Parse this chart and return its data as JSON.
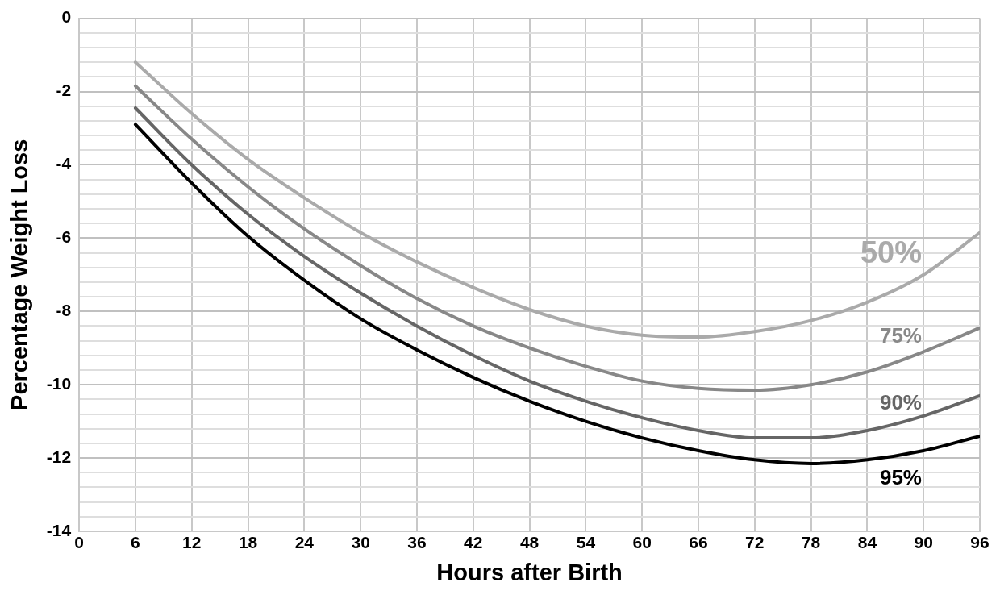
{
  "chart_data": {
    "type": "line",
    "xlabel": "Hours after Birth",
    "ylabel": "Percentage Weight Loss",
    "x": [
      6,
      12,
      18,
      24,
      30,
      36,
      42,
      48,
      54,
      60,
      66,
      72,
      78,
      84,
      90,
      96
    ],
    "series": [
      {
        "name": "50%",
        "color": "#aaaaaa",
        "values": [
          -1.2,
          -2.6,
          -3.85,
          -4.9,
          -5.85,
          -6.65,
          -7.35,
          -7.95,
          -8.4,
          -8.65,
          -8.7,
          -8.55,
          -8.25,
          -7.75,
          -7.0,
          -5.85
        ]
      },
      {
        "name": "75%",
        "color": "#888888",
        "values": [
          -1.85,
          -3.3,
          -4.6,
          -5.75,
          -6.75,
          -7.65,
          -8.4,
          -9.0,
          -9.5,
          -9.9,
          -10.1,
          -10.15,
          -10.0,
          -9.65,
          -9.1,
          -8.45
        ]
      },
      {
        "name": "90%",
        "color": "#666666",
        "values": [
          -2.45,
          -4.0,
          -5.35,
          -6.5,
          -7.5,
          -8.4,
          -9.2,
          -9.9,
          -10.45,
          -10.9,
          -11.25,
          -11.45,
          -11.45,
          -11.25,
          -10.85,
          -10.3
        ]
      },
      {
        "name": "95%",
        "color": "#000000",
        "values": [
          -2.9,
          -4.5,
          -5.95,
          -7.15,
          -8.2,
          -9.05,
          -9.8,
          -10.45,
          -11.0,
          -11.45,
          -11.8,
          -12.05,
          -12.15,
          -12.05,
          -11.8,
          -11.4
        ]
      }
    ],
    "xlim": [
      0,
      96
    ],
    "xticks": [
      0,
      6,
      12,
      18,
      24,
      30,
      36,
      42,
      48,
      54,
      60,
      66,
      72,
      78,
      84,
      90,
      96
    ],
    "ylim": [
      -14,
      0
    ],
    "yticks": [
      0,
      {
        "value": -0.4,
        "label": null
      },
      {
        "value": -0.8,
        "label": null
      },
      {
        "value": -1.2,
        "label": null
      },
      {
        "value": -1.6,
        "label": null
      },
      -2,
      {
        "value": -2.4,
        "label": null
      },
      {
        "value": -2.8,
        "label": null
      },
      {
        "value": -3.2,
        "label": null
      },
      {
        "value": -3.6,
        "label": null
      },
      -4,
      {
        "value": -4.4,
        "label": null
      },
      {
        "value": -4.8,
        "label": null
      },
      {
        "value": -5.2,
        "label": null
      },
      {
        "value": -5.6,
        "label": null
      },
      -6,
      {
        "value": -6.4,
        "label": null
      },
      {
        "value": -6.8,
        "label": null
      },
      {
        "value": -7.2,
        "label": null
      },
      {
        "value": -7.6,
        "label": null
      },
      -8,
      {
        "value": -8.4,
        "label": null
      },
      {
        "value": -8.8,
        "label": null
      },
      {
        "value": -9.2,
        "label": null
      },
      {
        "value": -9.6,
        "label": null
      },
      -10,
      {
        "value": -10.4,
        "label": null
      },
      {
        "value": -10.8,
        "label": null
      },
      {
        "value": -11.2,
        "label": null
      },
      {
        "value": -11.6,
        "label": null
      },
      -12,
      {
        "value": -12.4,
        "label": null
      },
      {
        "value": -12.8,
        "label": null
      },
      {
        "value": -13.2,
        "label": null
      },
      {
        "value": -13.6,
        "label": null
      },
      -14
    ],
    "grid": true,
    "legend": false,
    "marker": "none",
    "line_style": "solid"
  }
}
